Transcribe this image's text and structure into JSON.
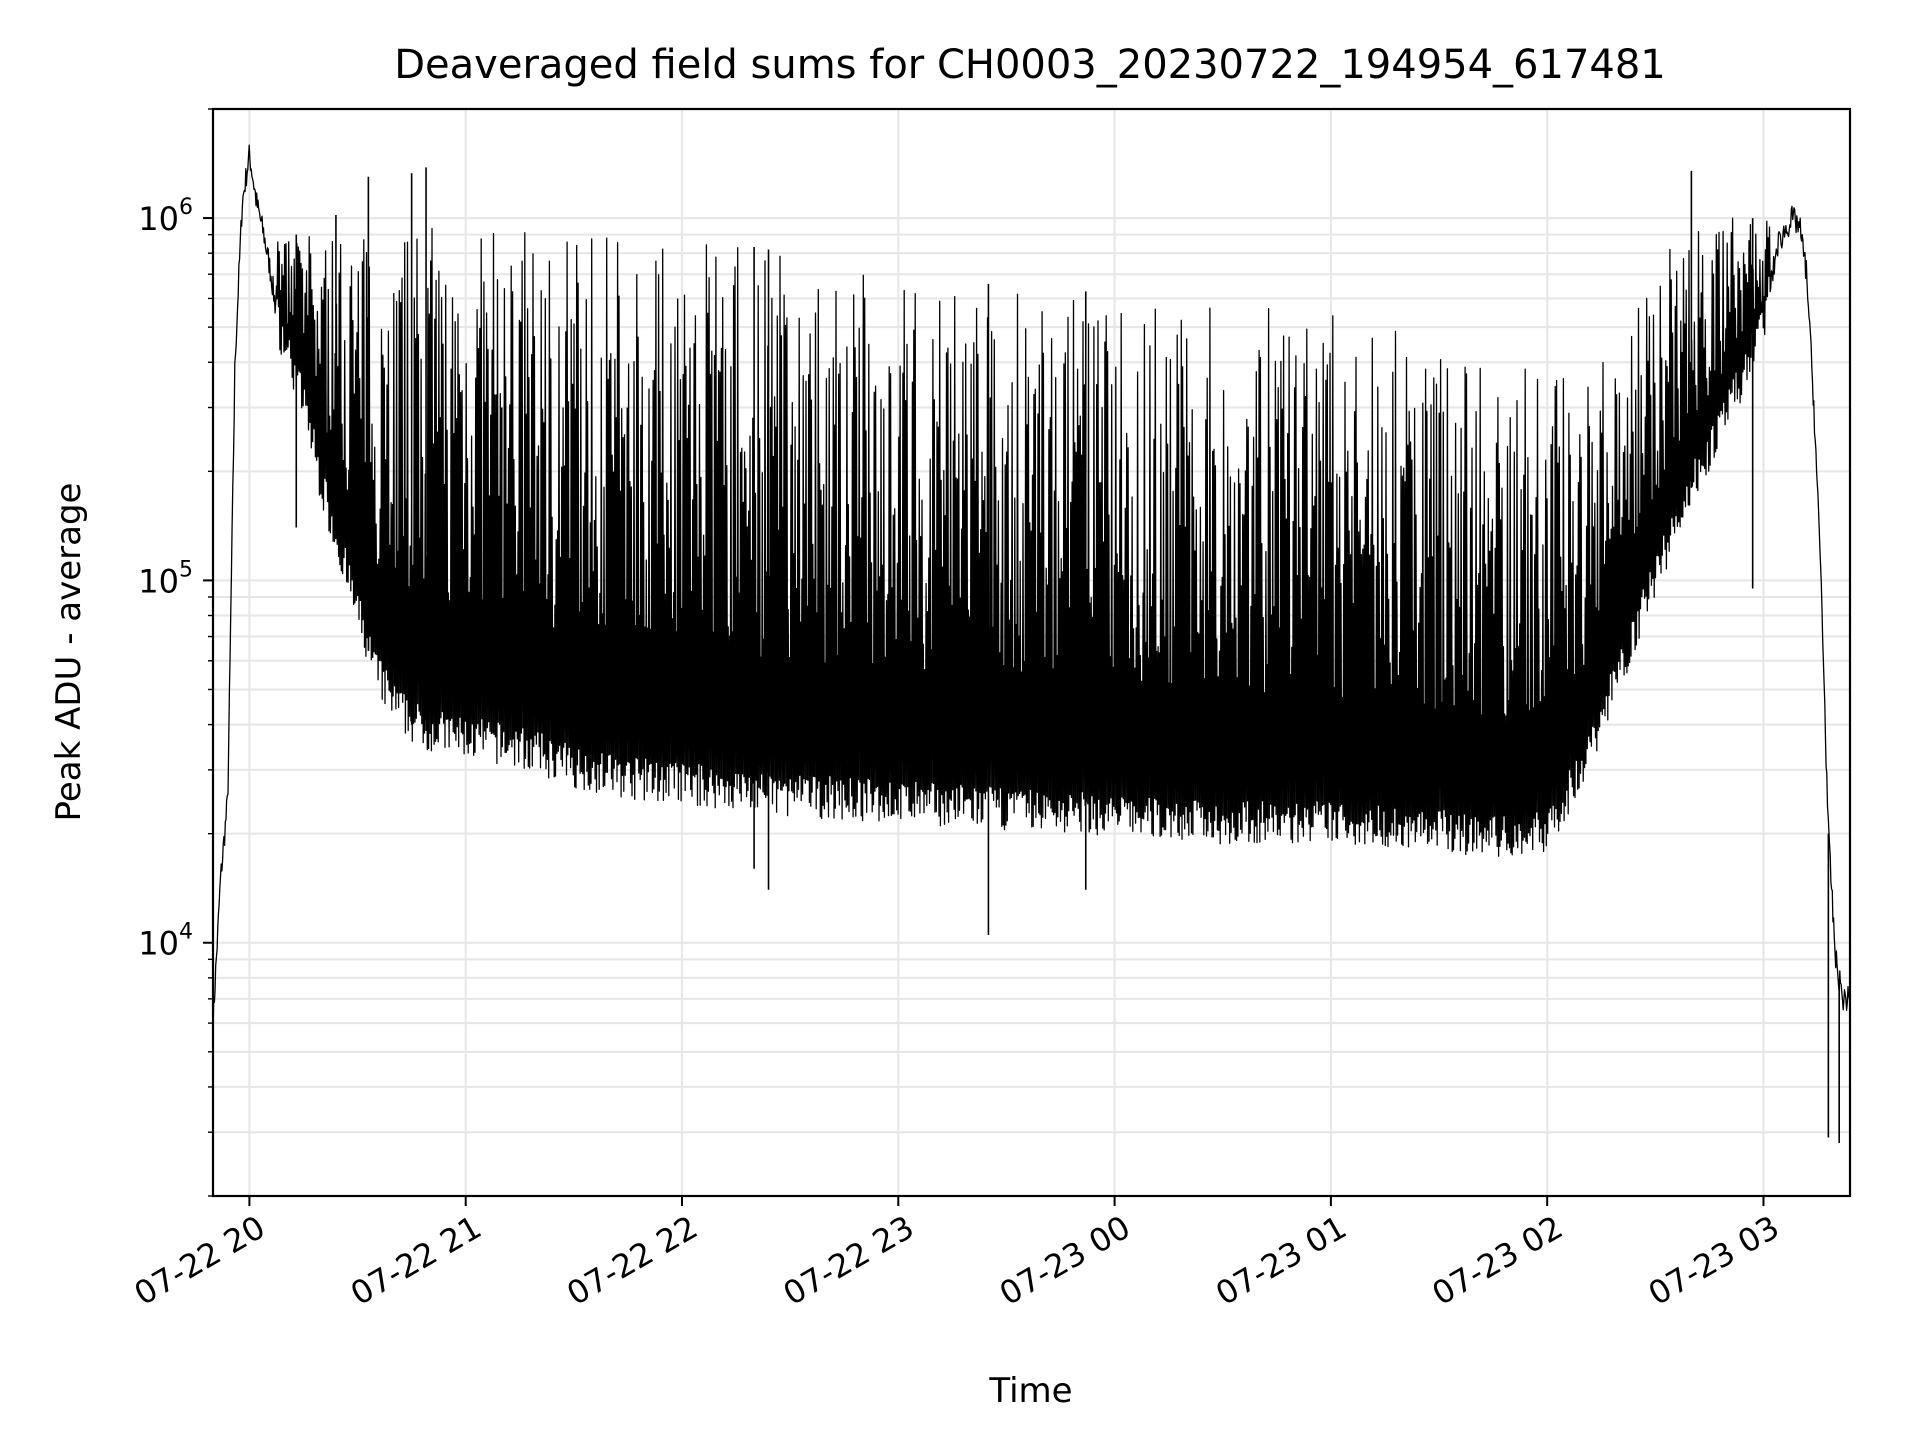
{
  "chart_data": {
    "type": "line",
    "title": "Deaveraged field sums for CH0003_20230722_194954_617481",
    "xlabel": "Time",
    "ylabel": "Peak ADU - average",
    "yscale": "log",
    "ylim": [
      2000,
      2000000
    ],
    "xlim": [
      "2023-07-22 19:49:54",
      "2023-07-23 03:24:00"
    ],
    "grid": true,
    "line_color": "#000000",
    "grid_color": "#e6e6e6",
    "x_ticks": [
      {
        "time": "2023-07-22 20:00",
        "label": "07-22 20"
      },
      {
        "time": "2023-07-22 21:00",
        "label": "07-22 21"
      },
      {
        "time": "2023-07-22 22:00",
        "label": "07-22 22"
      },
      {
        "time": "2023-07-22 23:00",
        "label": "07-22 23"
      },
      {
        "time": "2023-07-23 00:00",
        "label": "07-23 00"
      },
      {
        "time": "2023-07-23 01:00",
        "label": "07-23 01"
      },
      {
        "time": "2023-07-23 02:00",
        "label": "07-23 02"
      },
      {
        "time": "2023-07-23 03:00",
        "label": "07-23 03"
      }
    ],
    "y_ticks": [
      {
        "value": 10000,
        "label": "10",
        "exp": "4"
      },
      {
        "value": 100000,
        "label": "10",
        "exp": "5"
      },
      {
        "value": 1000000,
        "label": "10",
        "exp": "6"
      }
    ],
    "series": [
      {
        "envelope": {
          "x": [
            "2023-07-22 19:49:54",
            "2023-07-22 19:52",
            "2023-07-22 19:54",
            "2023-07-22 19:56",
            "2023-07-22 19:58",
            "2023-07-22 20:00",
            "2023-07-22 20:02",
            "2023-07-22 20:04",
            "2023-07-22 20:06",
            "2023-07-22 20:08",
            "2023-07-22 20:12",
            "2023-07-22 20:16",
            "2023-07-22 20:20",
            "2023-07-22 20:25",
            "2023-07-22 20:30",
            "2023-07-22 20:35",
            "2023-07-22 20:40",
            "2023-07-22 20:45",
            "2023-07-22 20:50",
            "2023-07-22 21:00",
            "2023-07-22 21:15",
            "2023-07-22 21:30",
            "2023-07-22 21:45",
            "2023-07-22 22:00",
            "2023-07-22 22:30",
            "2023-07-22 23:00",
            "2023-07-22 23:30",
            "2023-07-23 00:00",
            "2023-07-23 00:30",
            "2023-07-23 01:00",
            "2023-07-23 01:30",
            "2023-07-23 01:50",
            "2023-07-23 02:00",
            "2023-07-23 02:10",
            "2023-07-23 02:20",
            "2023-07-23 02:30",
            "2023-07-23 02:40",
            "2023-07-23 02:50",
            "2023-07-23 03:00",
            "2023-07-23 03:04",
            "2023-07-23 03:08",
            "2023-07-23 03:10",
            "2023-07-23 03:12",
            "2023-07-23 03:14",
            "2023-07-23 03:16",
            "2023-07-23 03:18",
            "2023-07-23 03:20",
            "2023-07-23 03:22",
            "2023-07-23 03:24"
          ],
          "baseline": [
            6000,
            15000,
            25000,
            400000,
            1100000,
            1500000,
            1100000,
            900000,
            700000,
            500000,
            380000,
            280000,
            180000,
            120000,
            80000,
            55000,
            45000,
            40000,
            38000,
            36000,
            34000,
            30000,
            28000,
            27000,
            25000,
            24000,
            23000,
            22000,
            21000,
            21000,
            20000,
            19000,
            20000,
            30000,
            55000,
            100000,
            180000,
            280000,
            500000,
            850000,
            1000000,
            950000,
            700000,
            300000,
            100000,
            20000,
            9000,
            7000,
            7000
          ],
          "top": [
            6000,
            15000,
            25000,
            400000,
            1100000,
            1500000,
            1100000,
            900000,
            900000,
            900000,
            900000,
            900000,
            900000,
            950000,
            950000,
            950000,
            950000,
            950000,
            950000,
            950000,
            950000,
            950000,
            950000,
            900000,
            800000,
            700000,
            650000,
            620000,
            580000,
            550000,
            450000,
            400000,
            380000,
            400000,
            500000,
            800000,
            1000000,
            1000000,
            1000000,
            1000000,
            1050000,
            1000000,
            800000,
            300000,
            100000,
            20000,
            9000,
            7000,
            7000
          ]
        },
        "spikes": [
          {
            "time": "2023-07-22 20:13",
            "value": 140000
          },
          {
            "time": "2023-07-22 20:24",
            "value": 1020000
          },
          {
            "time": "2023-07-22 20:33",
            "value": 1300000
          },
          {
            "time": "2023-07-22 20:45",
            "value": 1330000
          },
          {
            "time": "2023-07-22 20:49",
            "value": 1380000
          },
          {
            "time": "2023-07-22 21:10",
            "value": 300000
          },
          {
            "time": "2023-07-22 22:20",
            "value": 16000
          },
          {
            "time": "2023-07-22 22:24",
            "value": 14000
          },
          {
            "time": "2023-07-22 23:25",
            "value": 10500
          },
          {
            "time": "2023-07-22 23:52",
            "value": 14000
          },
          {
            "time": "2023-07-23 02:40",
            "value": 1350000
          },
          {
            "time": "2023-07-23 02:57",
            "value": 95000
          },
          {
            "time": "2023-07-23 03:18",
            "value": 2900
          },
          {
            "time": "2023-07-23 03:21",
            "value": 2800
          }
        ]
      }
    ]
  }
}
